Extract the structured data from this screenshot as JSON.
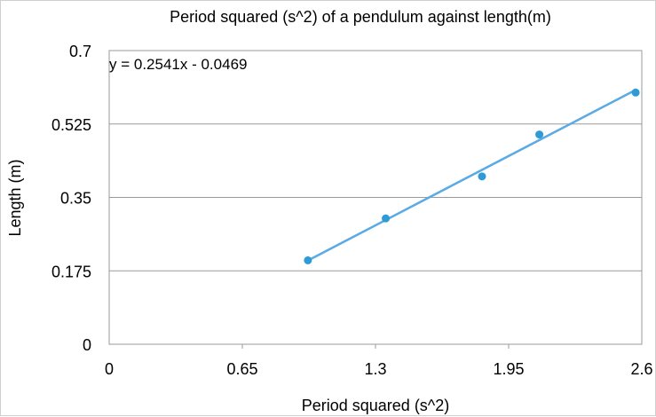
{
  "chart_data": {
    "type": "scatter",
    "title": "Period squared (s^2) of a pendulum against length(m)",
    "xlabel": "Period squared (s^2)",
    "ylabel": "Length (m)",
    "xlim": [
      0,
      2.6
    ],
    "ylim": [
      0,
      0.7
    ],
    "xticks": [
      "0",
      "0.65",
      "1.3",
      "1.95",
      "2.6"
    ],
    "yticks": [
      "0",
      "0.175",
      "0.35",
      "0.525",
      "0.7"
    ],
    "grid": true,
    "series": [
      {
        "points": [
          {
            "x": 0.97,
            "y": 0.2
          },
          {
            "x": 1.35,
            "y": 0.3
          },
          {
            "x": 1.82,
            "y": 0.4
          },
          {
            "x": 2.1,
            "y": 0.5
          },
          {
            "x": 2.57,
            "y": 0.6
          }
        ],
        "color": "#2E9BD6"
      }
    ],
    "trendline": {
      "slope": 0.2541,
      "intercept": -0.0469,
      "equation": "y = 0.2541x - 0.0469",
      "color": "#5AAAE6"
    }
  }
}
